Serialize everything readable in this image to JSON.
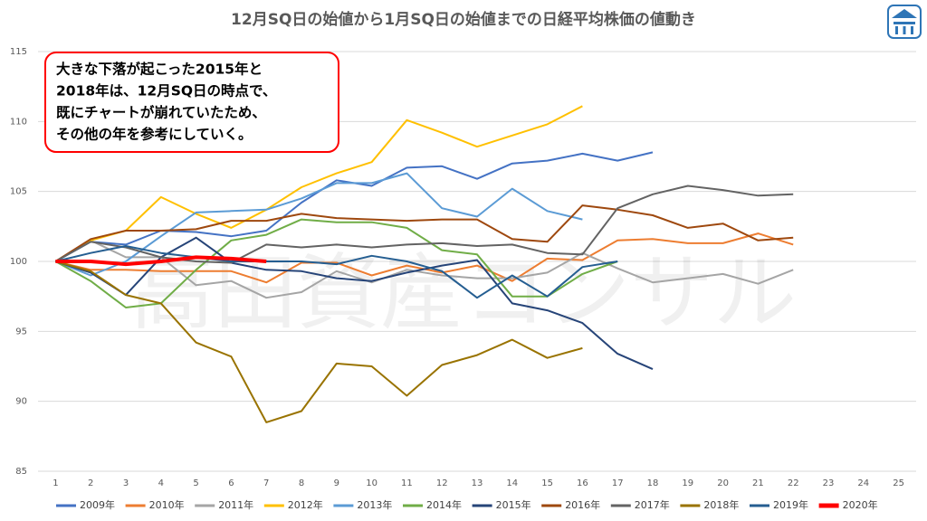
{
  "chart_data": {
    "type": "line",
    "title": "12月SQ日の始値から1月SQ日の始値までの日経平均株価の値動き",
    "annotation": [
      "大きな下落が起こった2015年と",
      "2018年は、12月SQ日の時点で、",
      "既にチャートが崩れていたため、",
      "その他の年を参考にしていく。"
    ],
    "watermark": "高田資産コンサル",
    "categories": [
      1,
      2,
      3,
      4,
      5,
      6,
      7,
      8,
      9,
      10,
      11,
      12,
      13,
      14,
      15,
      16,
      17,
      18,
      19,
      20,
      21,
      22,
      23,
      24,
      25
    ],
    "ylim": [
      85,
      115
    ],
    "yticks": [
      85,
      90,
      95,
      100,
      105,
      110,
      115
    ],
    "grid": true,
    "series": [
      {
        "name": "2009年",
        "color": "#4472c4",
        "width": 2,
        "values": [
          100,
          101.4,
          101.2,
          102.2,
          102.1,
          101.8,
          102.2,
          104.2,
          105.8,
          105.4,
          106.7,
          106.8,
          105.9,
          107.0,
          107.2,
          107.7,
          107.2,
          107.8,
          null,
          null,
          null,
          null,
          null,
          null,
          null
        ]
      },
      {
        "name": "2010年",
        "color": "#ed7d31",
        "width": 2,
        "values": [
          100,
          99.4,
          99.4,
          99.3,
          99.3,
          99.3,
          98.5,
          99.9,
          99.9,
          99.0,
          99.7,
          99.2,
          99.7,
          98.6,
          100.2,
          100.1,
          101.5,
          101.6,
          101.3,
          101.3,
          102.0,
          101.2,
          null,
          null,
          null
        ]
      },
      {
        "name": "2011年",
        "color": "#a5a5a5",
        "width": 2,
        "values": [
          100,
          101.5,
          100.3,
          100.3,
          98.3,
          98.6,
          97.4,
          97.8,
          99.3,
          98.5,
          99.4,
          99.0,
          98.8,
          98.8,
          99.2,
          100.6,
          99.5,
          98.5,
          98.8,
          99.1,
          98.4,
          99.4,
          null,
          null,
          null
        ]
      },
      {
        "name": "2012年",
        "color": "#ffc000",
        "width": 2,
        "values": [
          100,
          101.5,
          102.2,
          104.6,
          103.4,
          102.4,
          103.7,
          105.3,
          106.3,
          107.1,
          110.1,
          109.2,
          108.2,
          109.0,
          109.8,
          111.1,
          null,
          null,
          null,
          null,
          null,
          null,
          null,
          null,
          null
        ]
      },
      {
        "name": "2013年",
        "color": "#5b9bd5",
        "width": 2,
        "values": [
          100,
          99.0,
          100.0,
          101.8,
          103.5,
          103.6,
          103.7,
          104.5,
          105.6,
          105.6,
          106.3,
          103.8,
          103.2,
          105.2,
          103.6,
          103.0,
          null,
          null,
          null,
          null,
          null,
          null,
          null,
          null,
          null
        ]
      },
      {
        "name": "2014年",
        "color": "#70ad47",
        "width": 2,
        "values": [
          100,
          98.6,
          96.7,
          97.0,
          99.4,
          101.5,
          101.9,
          103.0,
          102.8,
          102.8,
          102.4,
          100.8,
          100.5,
          97.5,
          97.5,
          99.1,
          100.0,
          null,
          null,
          null,
          null,
          null,
          null,
          null,
          null
        ]
      },
      {
        "name": "2015年",
        "color": "#264478",
        "width": 2,
        "values": [
          100,
          99.2,
          97.6,
          100.3,
          101.7,
          99.9,
          99.4,
          99.3,
          98.8,
          98.6,
          99.2,
          99.7,
          100.1,
          97.0,
          96.5,
          95.6,
          93.4,
          92.3,
          null,
          null,
          null,
          null,
          null,
          null,
          null
        ]
      },
      {
        "name": "2016年",
        "color": "#9e480e",
        "width": 2,
        "values": [
          100,
          101.6,
          102.2,
          102.2,
          102.3,
          102.9,
          102.9,
          103.4,
          103.1,
          103.0,
          102.9,
          103.0,
          103.0,
          101.6,
          101.4,
          104.0,
          103.7,
          103.3,
          102.4,
          102.7,
          101.5,
          101.7,
          null,
          null,
          null
        ]
      },
      {
        "name": "2017年",
        "color": "#636363",
        "width": 2,
        "values": [
          100,
          101.4,
          101.0,
          100.3,
          100.0,
          99.9,
          101.2,
          101.0,
          101.2,
          101.0,
          101.2,
          101.3,
          101.1,
          101.2,
          100.6,
          100.5,
          103.8,
          104.8,
          105.4,
          105.1,
          104.7,
          104.8,
          null,
          null,
          null
        ]
      },
      {
        "name": "2018年",
        "color": "#997300",
        "width": 2,
        "values": [
          100,
          99.3,
          97.6,
          97.0,
          94.2,
          93.2,
          88.5,
          89.3,
          92.7,
          92.5,
          90.4,
          92.6,
          93.3,
          94.4,
          93.1,
          93.8,
          null,
          null,
          null,
          null,
          null,
          null,
          null,
          null,
          null
        ]
      },
      {
        "name": "2019年",
        "color": "#255e91",
        "width": 2,
        "values": [
          100,
          100.6,
          101.1,
          100.6,
          100.3,
          100.0,
          100.0,
          100.0,
          99.8,
          100.4,
          100.0,
          99.3,
          97.4,
          99.0,
          97.5,
          99.6,
          100.0,
          null,
          null,
          null,
          null,
          null,
          null,
          null,
          null
        ]
      },
      {
        "name": "2020年",
        "color": "#ff0000",
        "width": 4,
        "values": [
          100,
          100.0,
          99.8,
          100.0,
          100.3,
          100.2,
          100.0,
          null,
          null,
          null,
          null,
          null,
          null,
          null,
          null,
          null,
          null,
          null,
          null,
          null,
          null,
          null,
          null,
          null,
          null
        ]
      }
    ]
  }
}
